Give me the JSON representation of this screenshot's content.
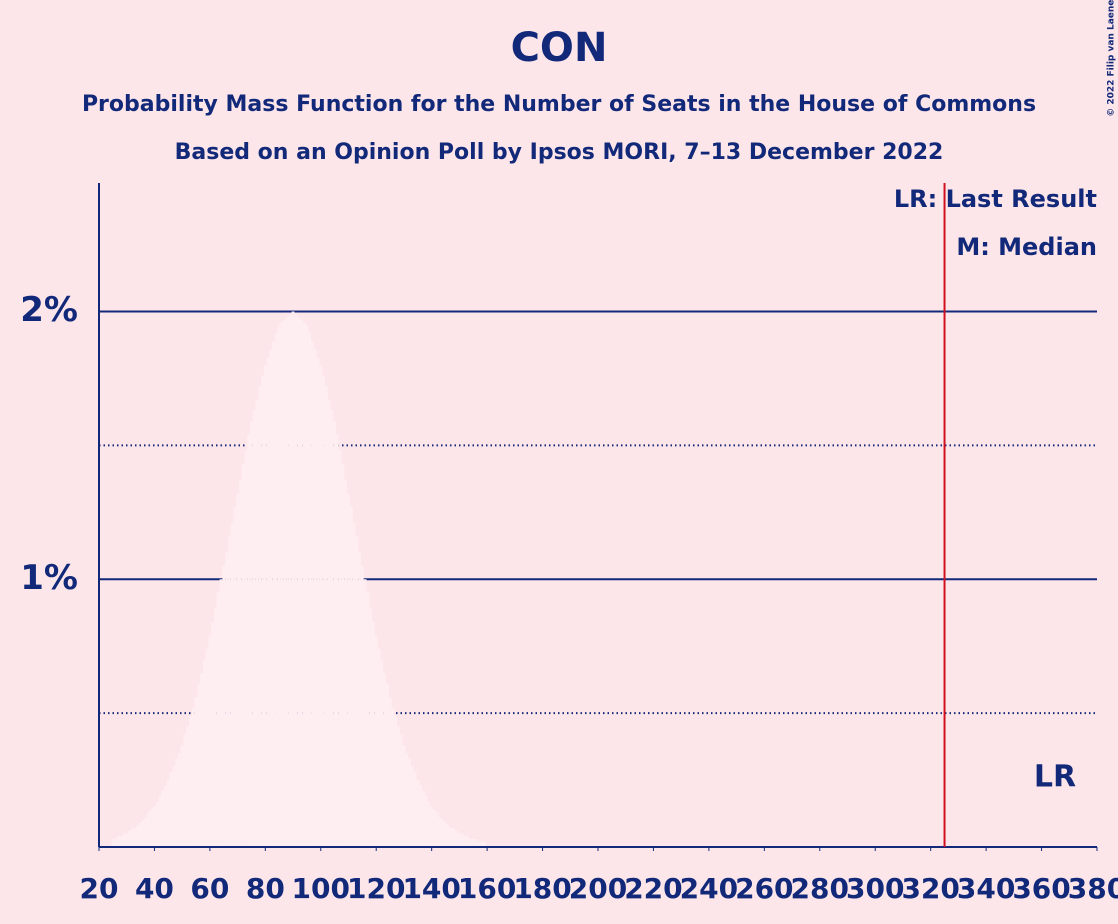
{
  "chart_data": {
    "type": "bar",
    "title": "CON",
    "subtitle": "Probability Mass Function for the Number of Seats in the House of Commons",
    "subtitle2": "Based on an Opinion Poll by Ipsos MORI, 7–13 December 2022",
    "copyright": "© 2022 Filip van Laenen",
    "legend": [
      "LR: Last Result",
      "M: Median"
    ],
    "last_result": 325,
    "last_result_label": "LR",
    "last_result_color": "#d0101f",
    "color": "#ffeef1",
    "text_color": "#12297a",
    "x": [
      25,
      26,
      27,
      28,
      29,
      30,
      31,
      32,
      33,
      34,
      35,
      36,
      37,
      38,
      39,
      40,
      41,
      42,
      43,
      44,
      45,
      46,
      47,
      48,
      49,
      50,
      51,
      52,
      53,
      54,
      55,
      56,
      57,
      58,
      59,
      60,
      61,
      62,
      63,
      64,
      65,
      66,
      67,
      68,
      69,
      70,
      71,
      72,
      73,
      74,
      75,
      76,
      77,
      78,
      79,
      80,
      81,
      82,
      83,
      84,
      85,
      86,
      87,
      88,
      89,
      90,
      91,
      92,
      93,
      94,
      95,
      96,
      97,
      98,
      99,
      100,
      101,
      102,
      103,
      104,
      105,
      106,
      107,
      108,
      109,
      110,
      111,
      112,
      113,
      114,
      115,
      116,
      117,
      118,
      119,
      120,
      121,
      122,
      123,
      124,
      125,
      126,
      127,
      128,
      129,
      130,
      131,
      132,
      133,
      134,
      135,
      136,
      137,
      138,
      139,
      140,
      141,
      142,
      143,
      144,
      145,
      146,
      147,
      148,
      149,
      150,
      151,
      152,
      153,
      154,
      155,
      156,
      157,
      158,
      159
    ],
    "values": [
      0.03,
      0.03,
      0.04,
      0.04,
      0.05,
      0.05,
      0.06,
      0.07,
      0.07,
      0.08,
      0.09,
      0.1,
      0.11,
      0.13,
      0.14,
      0.15,
      0.17,
      0.19,
      0.21,
      0.23,
      0.25,
      0.28,
      0.3,
      0.33,
      0.35,
      0.38,
      0.42,
      0.45,
      0.49,
      0.52,
      0.56,
      0.61,
      0.65,
      0.7,
      0.74,
      0.79,
      0.84,
      0.89,
      0.95,
      1.0,
      1.05,
      1.1,
      1.16,
      1.21,
      1.27,
      1.32,
      1.37,
      1.43,
      1.48,
      1.54,
      1.59,
      1.63,
      1.67,
      1.72,
      1.76,
      1.8,
      1.83,
      1.86,
      1.89,
      1.92,
      1.95,
      1.96,
      1.97,
      1.98,
      1.99,
      2.0,
      1.99,
      1.98,
      1.97,
      1.96,
      1.95,
      1.92,
      1.89,
      1.86,
      1.83,
      1.8,
      1.76,
      1.72,
      1.67,
      1.63,
      1.59,
      1.54,
      1.48,
      1.43,
      1.37,
      1.32,
      1.27,
      1.21,
      1.16,
      1.1,
      1.05,
      1.0,
      0.95,
      0.89,
      0.84,
      0.79,
      0.74,
      0.7,
      0.65,
      0.61,
      0.56,
      0.52,
      0.49,
      0.45,
      0.42,
      0.38,
      0.35,
      0.33,
      0.3,
      0.28,
      0.25,
      0.23,
      0.21,
      0.19,
      0.17,
      0.15,
      0.14,
      0.13,
      0.11,
      0.1,
      0.09,
      0.08,
      0.07,
      0.07,
      0.06,
      0.05,
      0.05,
      0.04,
      0.04,
      0.03,
      0.03,
      0.03,
      0.02,
      0.02,
      0.02
    ],
    "xlim": [
      20,
      380
    ],
    "xticks": [
      20,
      40,
      60,
      80,
      100,
      120,
      140,
      160,
      180,
      200,
      220,
      240,
      260,
      280,
      300,
      320,
      340,
      360,
      380
    ],
    "ylim": [
      0,
      2.48
    ],
    "yticks": [
      {
        "value": 1,
        "label": "1%"
      },
      {
        "value": 2,
        "label": "2%"
      }
    ],
    "minor_grid": [
      0.5,
      1.5
    ],
    "grid": true
  }
}
